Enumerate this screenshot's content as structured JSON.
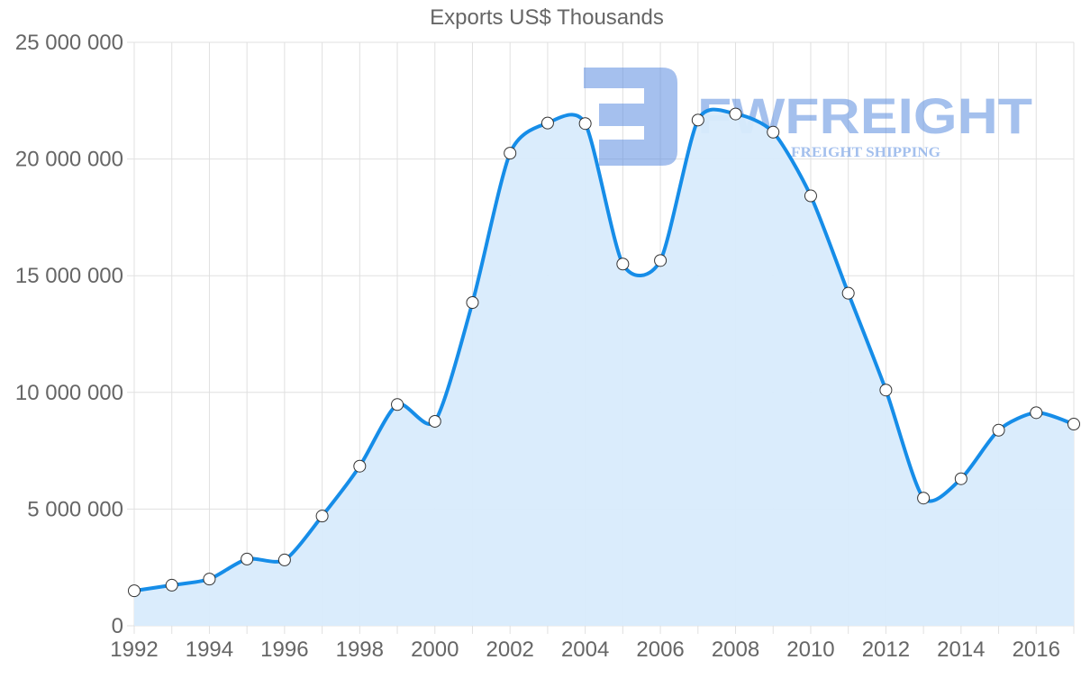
{
  "chart_data": {
    "type": "area",
    "title": "Exports US$ Thousands",
    "xlabel": "",
    "ylabel": "",
    "x": [
      1992,
      1993,
      1994,
      1995,
      1996,
      1997,
      1998,
      1999,
      2000,
      2001,
      2002,
      2003,
      2004,
      2005,
      2006,
      2007,
      2008,
      2009,
      2010,
      2011,
      2012,
      2013,
      2014,
      2015,
      2016,
      2017
    ],
    "series": [
      {
        "name": "Exports US$ Thousands",
        "values": [
          1500000,
          1740000,
          2000000,
          2860000,
          2820000,
          4700000,
          6840000,
          9480000,
          8760000,
          13850000,
          20250000,
          21540000,
          21520000,
          15500000,
          15650000,
          21670000,
          21930000,
          21150000,
          18420000,
          14250000,
          10100000,
          5470000,
          6300000,
          8380000,
          9130000,
          8640000
        ]
      }
    ],
    "xticks": [
      "1992",
      "1994",
      "1996",
      "1998",
      "2000",
      "2002",
      "2004",
      "2006",
      "2008",
      "2010",
      "2012",
      "2014",
      "2016"
    ],
    "yticks": [
      "0",
      "5 000 000",
      "10 000 000",
      "15 000 000",
      "20 000 000",
      "25 000 000"
    ],
    "ylim": [
      0,
      25000000
    ],
    "xlim": [
      1992,
      2017
    ],
    "grid": true,
    "legend": "none",
    "colors": {
      "line": "#168de8",
      "fill": "#d8ebfc",
      "point_fill": "#ffffff",
      "point_stroke": "#333333",
      "grid": "#e0e0e0",
      "text": "#666666"
    }
  },
  "watermark": {
    "brand": "FWFREIGHT",
    "tagline": "FREIGHT SHIPPING",
    "color": "#7fa6ea"
  }
}
